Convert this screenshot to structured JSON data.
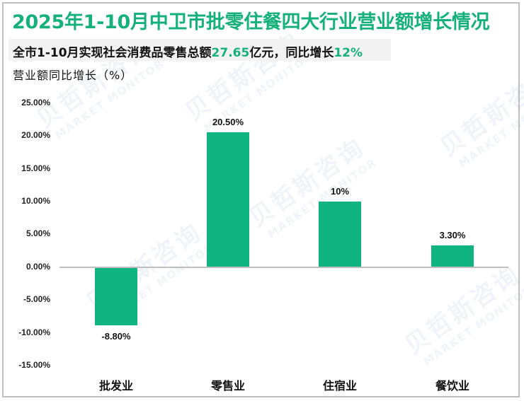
{
  "title": "2025年1-10月中卫市批零住餐四大行业营业额增长情况",
  "subtitle": {
    "prefix": "全市1-10月实现社会消费品零售总额",
    "amount": "27.65",
    "middle": "亿元，同比增长",
    "growth": "12%"
  },
  "watermark": {
    "cn": "贝哲斯咨询",
    "en": "MARKET MONITOR"
  },
  "colors": {
    "accent": "#16b07a",
    "bar": "#10b480",
    "axis": "#bfbfbf",
    "subtitle_bg": "#f2f2f2"
  },
  "chart_data": {
    "type": "bar",
    "title": "2025年1-10月中卫市批零住餐四大行业营业额增长情况",
    "subtitle": "全市1-10月实现社会消费品零售总额27.65亿元，同比增长12%",
    "xlabel": "",
    "ylabel": "营业额同比增长（%）",
    "categories": [
      "批发业",
      "零售业",
      "住宿业",
      "餐饮业"
    ],
    "values": [
      -8.8,
      20.5,
      10,
      3.3
    ],
    "data_labels": [
      "-8.80%",
      "20.50%",
      "10%",
      "3.30%"
    ],
    "ylim": [
      -15,
      25
    ],
    "yticks": [
      "25.00%",
      "20.00%",
      "15.00%",
      "10.00%",
      "5.00%",
      "0.00%",
      "-5.00%",
      "-10.00%",
      "-15.00%"
    ],
    "grid": false,
    "legend": null
  }
}
